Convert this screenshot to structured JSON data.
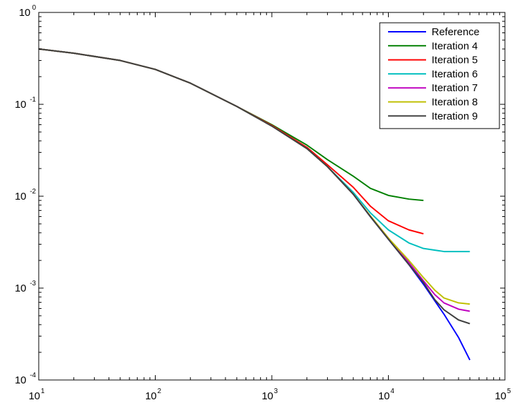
{
  "chart_data": {
    "type": "line",
    "x_scale": "log",
    "y_scale": "log",
    "xlim": [
      10,
      100000
    ],
    "ylim": [
      0.0001,
      1
    ],
    "x_ticks": [
      {
        "value": 10,
        "base": "10",
        "exp": "1"
      },
      {
        "value": 100,
        "base": "10",
        "exp": "2"
      },
      {
        "value": 1000,
        "base": "10",
        "exp": "3"
      },
      {
        "value": 10000,
        "base": "10",
        "exp": "4"
      },
      {
        "value": 100000,
        "base": "10",
        "exp": "5"
      }
    ],
    "y_ticks": [
      {
        "value": 1,
        "base": "10",
        "exp": "0"
      },
      {
        "value": 0.1,
        "base": "10",
        "exp": "-1"
      },
      {
        "value": 0.01,
        "base": "10",
        "exp": "-2"
      },
      {
        "value": 0.001,
        "base": "10",
        "exp": "-3"
      },
      {
        "value": 0.0001,
        "base": "10",
        "exp": "-4"
      }
    ],
    "grid": false,
    "legend_position": "top-right",
    "series": [
      {
        "name": "Reference",
        "color": "#0000ff",
        "points": [
          [
            10,
            0.4
          ],
          [
            20,
            0.36
          ],
          [
            50,
            0.3
          ],
          [
            100,
            0.24
          ],
          [
            200,
            0.17
          ],
          [
            500,
            0.095
          ],
          [
            1000,
            0.058
          ],
          [
            2000,
            0.033
          ],
          [
            3000,
            0.021
          ],
          [
            5000,
            0.0105
          ],
          [
            7000,
            0.006
          ],
          [
            10000,
            0.0034
          ],
          [
            15000,
            0.0018
          ],
          [
            20000,
            0.0011
          ],
          [
            30000,
            0.00052
          ],
          [
            40000,
            0.00029
          ],
          [
            50000,
            0.000165
          ]
        ]
      },
      {
        "name": "Iteration 4",
        "color": "#008000",
        "points": [
          [
            10,
            0.4
          ],
          [
            20,
            0.36
          ],
          [
            50,
            0.3
          ],
          [
            100,
            0.24
          ],
          [
            200,
            0.17
          ],
          [
            500,
            0.095
          ],
          [
            1000,
            0.06
          ],
          [
            2000,
            0.036
          ],
          [
            3000,
            0.025
          ],
          [
            5000,
            0.0165
          ],
          [
            7000,
            0.0122
          ],
          [
            10000,
            0.0102
          ],
          [
            15000,
            0.0093
          ],
          [
            20000,
            0.009
          ]
        ]
      },
      {
        "name": "Iteration 5",
        "color": "#ff0000",
        "points": [
          [
            10,
            0.4
          ],
          [
            20,
            0.36
          ],
          [
            50,
            0.3
          ],
          [
            100,
            0.24
          ],
          [
            200,
            0.17
          ],
          [
            500,
            0.095
          ],
          [
            1000,
            0.059
          ],
          [
            2000,
            0.034
          ],
          [
            3000,
            0.022
          ],
          [
            5000,
            0.0125
          ],
          [
            7000,
            0.0078
          ],
          [
            10000,
            0.0054
          ],
          [
            15000,
            0.0043
          ],
          [
            20000,
            0.0039
          ]
        ]
      },
      {
        "name": "Iteration 6",
        "color": "#00bfbf",
        "points": [
          [
            10,
            0.4
          ],
          [
            20,
            0.36
          ],
          [
            50,
            0.3
          ],
          [
            100,
            0.24
          ],
          [
            200,
            0.17
          ],
          [
            500,
            0.095
          ],
          [
            1000,
            0.058
          ],
          [
            2000,
            0.033
          ],
          [
            3000,
            0.021
          ],
          [
            5000,
            0.011
          ],
          [
            7000,
            0.0066
          ],
          [
            10000,
            0.0043
          ],
          [
            15000,
            0.0031
          ],
          [
            20000,
            0.0027
          ],
          [
            30000,
            0.0025
          ],
          [
            50000,
            0.0025
          ]
        ]
      },
      {
        "name": "Iteration 7",
        "color": "#bf00bf",
        "points": [
          [
            10,
            0.4
          ],
          [
            20,
            0.36
          ],
          [
            50,
            0.3
          ],
          [
            100,
            0.24
          ],
          [
            200,
            0.17
          ],
          [
            500,
            0.095
          ],
          [
            1000,
            0.058
          ],
          [
            2000,
            0.033
          ],
          [
            3000,
            0.021
          ],
          [
            5000,
            0.0105
          ],
          [
            7000,
            0.0061
          ],
          [
            10000,
            0.0035
          ],
          [
            15000,
            0.0019
          ],
          [
            20000,
            0.0012
          ],
          [
            25000,
            0.00085
          ],
          [
            30000,
            0.00069
          ],
          [
            40000,
            0.00059
          ],
          [
            50000,
            0.00056
          ]
        ]
      },
      {
        "name": "Iteration 8",
        "color": "#bfbf00",
        "points": [
          [
            10,
            0.4
          ],
          [
            20,
            0.36
          ],
          [
            50,
            0.3
          ],
          [
            100,
            0.24
          ],
          [
            200,
            0.17
          ],
          [
            500,
            0.095
          ],
          [
            1000,
            0.058
          ],
          [
            2000,
            0.033
          ],
          [
            3000,
            0.021
          ],
          [
            5000,
            0.0105
          ],
          [
            7000,
            0.0061
          ],
          [
            10000,
            0.0035
          ],
          [
            15000,
            0.002
          ],
          [
            20000,
            0.0013
          ],
          [
            25000,
            0.00095
          ],
          [
            30000,
            0.00078
          ],
          [
            40000,
            0.00069
          ],
          [
            50000,
            0.00067
          ]
        ]
      },
      {
        "name": "Iteration 9",
        "color": "#404040",
        "points": [
          [
            10,
            0.4
          ],
          [
            20,
            0.36
          ],
          [
            50,
            0.3
          ],
          [
            100,
            0.24
          ],
          [
            200,
            0.17
          ],
          [
            500,
            0.095
          ],
          [
            1000,
            0.058
          ],
          [
            2000,
            0.033
          ],
          [
            3000,
            0.021
          ],
          [
            5000,
            0.0105
          ],
          [
            7000,
            0.006
          ],
          [
            10000,
            0.0034
          ],
          [
            15000,
            0.0018
          ],
          [
            20000,
            0.00115
          ],
          [
            25000,
            0.00075
          ],
          [
            30000,
            0.00058
          ],
          [
            40000,
            0.00045
          ],
          [
            50000,
            0.00041
          ]
        ]
      }
    ]
  }
}
